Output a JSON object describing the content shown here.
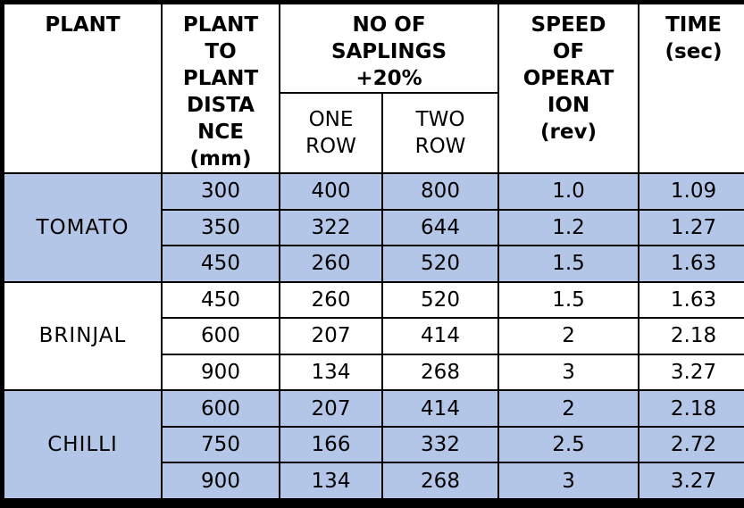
{
  "headers": {
    "plant": "PLANT",
    "distance_lines": [
      "PLANT",
      "TO",
      "PLANT",
      "DISTA",
      "NCE",
      "(mm)"
    ],
    "saplings_lines": [
      "NO OF",
      "SAPLINGS",
      "+20%"
    ],
    "one_row_lines": [
      "ONE",
      "ROW"
    ],
    "two_row_lines": [
      "TWO",
      "ROW"
    ],
    "speed_lines": [
      "SPEED",
      "OF",
      "OPERAT",
      "ION",
      "(rev)"
    ],
    "time_lines": [
      "TIME",
      "(sec)"
    ]
  },
  "groups": [
    {
      "plant": "TOMATO",
      "rows": [
        {
          "distance": "300",
          "one_row": "400",
          "two_row": "800",
          "speed": "1.0",
          "time": "1.09"
        },
        {
          "distance": "350",
          "one_row": "322",
          "two_row": "644",
          "speed": "1.2",
          "time": "1.27"
        },
        {
          "distance": "450",
          "one_row": "260",
          "two_row": "520",
          "speed": "1.5",
          "time": "1.63"
        }
      ]
    },
    {
      "plant": "BRINJAL",
      "rows": [
        {
          "distance": "450",
          "one_row": "260",
          "two_row": "520",
          "speed": "1.5",
          "time": "1.63"
        },
        {
          "distance": "600",
          "one_row": "207",
          "two_row": "414",
          "speed": "2",
          "time": "2.18"
        },
        {
          "distance": "900",
          "one_row": "134",
          "two_row": "268",
          "speed": "3",
          "time": "3.27"
        }
      ]
    },
    {
      "plant": "CHILLI",
      "rows": [
        {
          "distance": "600",
          "one_row": "207",
          "two_row": "414",
          "speed": "2",
          "time": "2.18"
        },
        {
          "distance": "750",
          "one_row": "166",
          "two_row": "332",
          "speed": "2.5",
          "time": "2.72"
        },
        {
          "distance": "900",
          "one_row": "134",
          "two_row": "268",
          "speed": "3",
          "time": "3.27"
        }
      ]
    }
  ],
  "colors": {
    "band_fill": "#b4c6e7",
    "plain_fill": "#ffffff",
    "border": "#000000"
  }
}
